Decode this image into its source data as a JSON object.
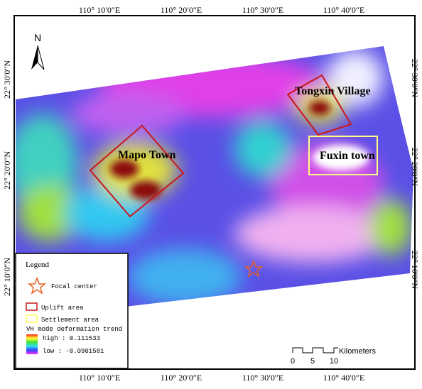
{
  "axes": {
    "top": [
      "110° 10′0″E",
      "110° 20′0″E",
      "110° 30′0″E",
      "110° 40′0″E"
    ],
    "bottom": [
      "110° 10′0″E",
      "110° 20′0″E",
      "110° 30′0″E",
      "110° 40′0″E"
    ],
    "left": [
      "22° 30′0″N",
      "22° 20′0″N",
      "22° 10′0″N"
    ],
    "right": [
      "22° 30′0″N",
      "22° 20′0″N",
      "22° 10′0″N"
    ]
  },
  "north": "N",
  "places": [
    "Tongxin Village",
    "Mapo Town",
    "Fuxin town"
  ],
  "legend": {
    "title": "Legend",
    "focal": "Focal center",
    "uplift": "Uplift area",
    "settlement": "Settlement area",
    "trend": "VH mode deformation trend",
    "high": "high : 0.111533",
    "low": "low : -0.0901581"
  },
  "scale_bar": {
    "ticks": [
      0,
      5,
      10
    ],
    "unit": "Kilometers"
  }
}
